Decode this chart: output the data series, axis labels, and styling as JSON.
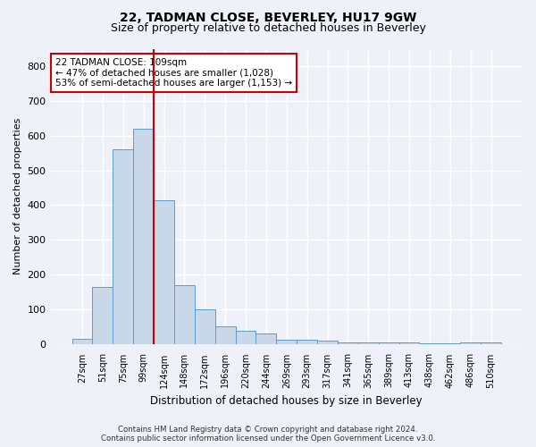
{
  "title1": "22, TADMAN CLOSE, BEVERLEY, HU17 9GW",
  "title2": "Size of property relative to detached houses in Beverley",
  "xlabel": "Distribution of detached houses by size in Beverley",
  "ylabel": "Number of detached properties",
  "categories": [
    "27sqm",
    "51sqm",
    "75sqm",
    "99sqm",
    "124sqm",
    "148sqm",
    "172sqm",
    "196sqm",
    "220sqm",
    "244sqm",
    "269sqm",
    "293sqm",
    "317sqm",
    "341sqm",
    "365sqm",
    "389sqm",
    "413sqm",
    "438sqm",
    "462sqm",
    "486sqm",
    "510sqm"
  ],
  "values": [
    15,
    165,
    560,
    620,
    415,
    170,
    100,
    50,
    38,
    30,
    12,
    12,
    8,
    5,
    5,
    5,
    5,
    2,
    2,
    5,
    5
  ],
  "bar_color": "#c8d8e8",
  "bar_edge_color": "#5b9bd5",
  "vline_color": "#cc0000",
  "vline_index": 3,
  "annotation_title": "22 TADMAN CLOSE: 109sqm",
  "annotation_line1": "← 47% of detached houses are smaller (1,028)",
  "annotation_line2": "53% of semi-detached houses are larger (1,153) →",
  "annotation_box_color": "#ffffff",
  "annotation_box_edge": "#cc0000",
  "ylim": [
    0,
    850
  ],
  "yticks": [
    0,
    100,
    200,
    300,
    400,
    500,
    600,
    700,
    800
  ],
  "footer1": "Contains HM Land Registry data © Crown copyright and database right 2024.",
  "footer2": "Contains public sector information licensed under the Open Government Licence v3.0.",
  "background_color": "#eef2f8",
  "grid_color": "#ffffff",
  "title_fontsize": 10,
  "subtitle_fontsize": 9,
  "bar_width": 1.0
}
